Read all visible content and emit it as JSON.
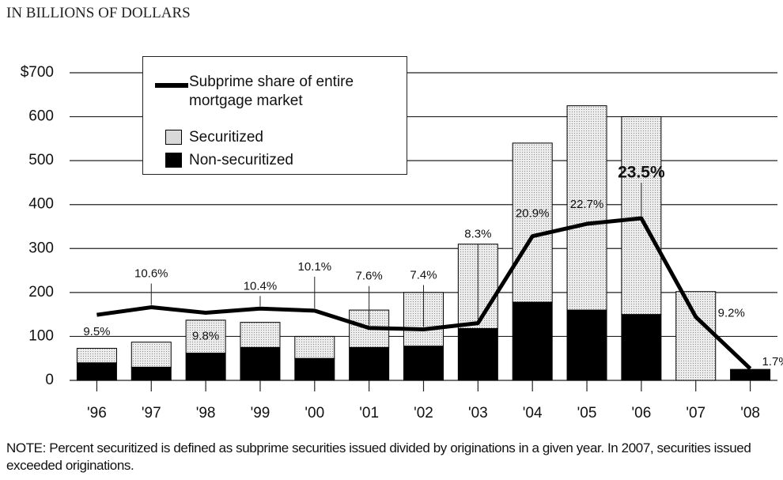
{
  "chart_data": {
    "type": "stacked_bar_line",
    "title": "IN BILLIONS OF DOLLARS",
    "note": "NOTE: Percent securitized is defined as subprime securities issued divided by originations in a given year. In 2007, securities issued exceeded originations.",
    "categories": [
      "'96",
      "'97",
      "'98",
      "'99",
      "'00",
      "'01",
      "'02",
      "'03",
      "'04",
      "'05",
      "'06",
      "'07",
      "'08"
    ],
    "series": [
      {
        "name": "Non-securitized",
        "color": "#000000",
        "values": [
          40,
          30,
          62,
          75,
          50,
          75,
          78,
          118,
          178,
          160,
          150,
          0,
          25
        ]
      },
      {
        "name": "Securitized",
        "color": "#d9d9d9",
        "values": [
          33,
          57,
          75,
          57,
          50,
          85,
          122,
          192,
          362,
          465,
          450,
          202,
          0
        ]
      },
      {
        "name": "Subprime share of entire mortgage market",
        "color": "#000000",
        "axis": "y2",
        "values": [
          9.5,
          10.6,
          9.8,
          10.4,
          10.1,
          7.6,
          7.4,
          8.3,
          20.9,
          22.7,
          23.5,
          9.2,
          1.7
        ],
        "value_labels": [
          "9.5%",
          "10.6%",
          "9.8%",
          "10.4%",
          "10.1%",
          "7.6%",
          "7.4%",
          "8.3%",
          "20.9%",
          "22.7%",
          "23.5%",
          "9.2%",
          "1.7%"
        ]
      }
    ],
    "ylim": [
      0,
      700
    ],
    "yticks": [
      0,
      100,
      200,
      300,
      400,
      500,
      600,
      {
        "value": 700,
        "label": "$700"
      }
    ],
    "y2lim": [
      0,
      44.6
    ],
    "grid": true
  }
}
